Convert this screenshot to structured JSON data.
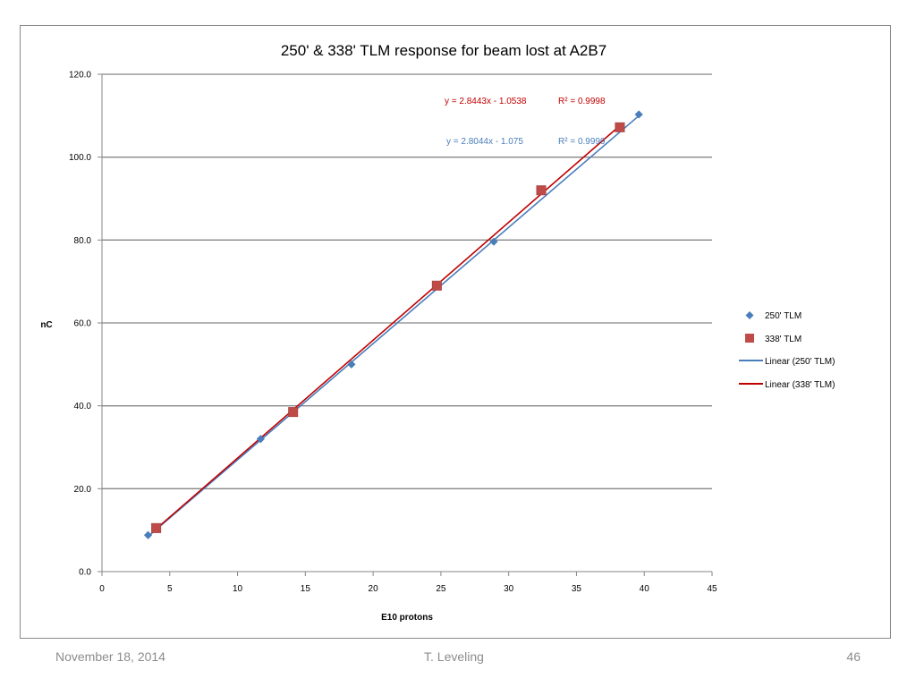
{
  "chart_data": {
    "type": "scatter",
    "title": "250' & 338' TLM response for beam lost at A2B7",
    "xlabel": "E10 protons",
    "ylabel": "nC",
    "xlim": [
      0,
      45
    ],
    "ylim": [
      0,
      120
    ],
    "x_ticks": [
      0,
      5,
      10,
      15,
      20,
      25,
      30,
      35,
      40,
      45
    ],
    "y_ticks": [
      "0.0",
      "20.0",
      "40.0",
      "60.0",
      "80.0",
      "100.0",
      "120.0"
    ],
    "y_tick_values": [
      0,
      20,
      40,
      60,
      80,
      100,
      120
    ],
    "grid": "horizontal",
    "legend_position": "right",
    "series": [
      {
        "name": "250' TLM",
        "marker": "diamond",
        "color": "#4a7ebb",
        "x": [
          3.4,
          11.7,
          18.4,
          28.9,
          39.6
        ],
        "y": [
          8.8,
          32.0,
          50.0,
          79.6,
          110.3
        ]
      },
      {
        "name": "338' TLM",
        "marker": "square",
        "color": "#be4b48",
        "x": [
          4.0,
          14.1,
          24.7,
          32.4,
          38.2
        ],
        "y": [
          10.5,
          38.5,
          69.0,
          92.0,
          107.2
        ]
      }
    ],
    "trendlines": [
      {
        "name": "Linear (250' TLM)",
        "color": "#4a7ebb",
        "slope": 2.8044,
        "intercept": -1.075,
        "x_range": [
          3.4,
          39.6
        ],
        "equation": "y = 2.8044x - 1.075",
        "r2": "R² = 0.9999"
      },
      {
        "name": "Linear (338' TLM)",
        "color": "#c00000",
        "slope": 2.8443,
        "intercept": -1.0538,
        "x_range": [
          4.0,
          38.2
        ],
        "equation": "y = 2.8443x - 1.0538",
        "r2": "R² = 0.9998"
      }
    ]
  },
  "footer": {
    "date": "November 18, 2014",
    "author": "T. Leveling",
    "page": "46"
  }
}
